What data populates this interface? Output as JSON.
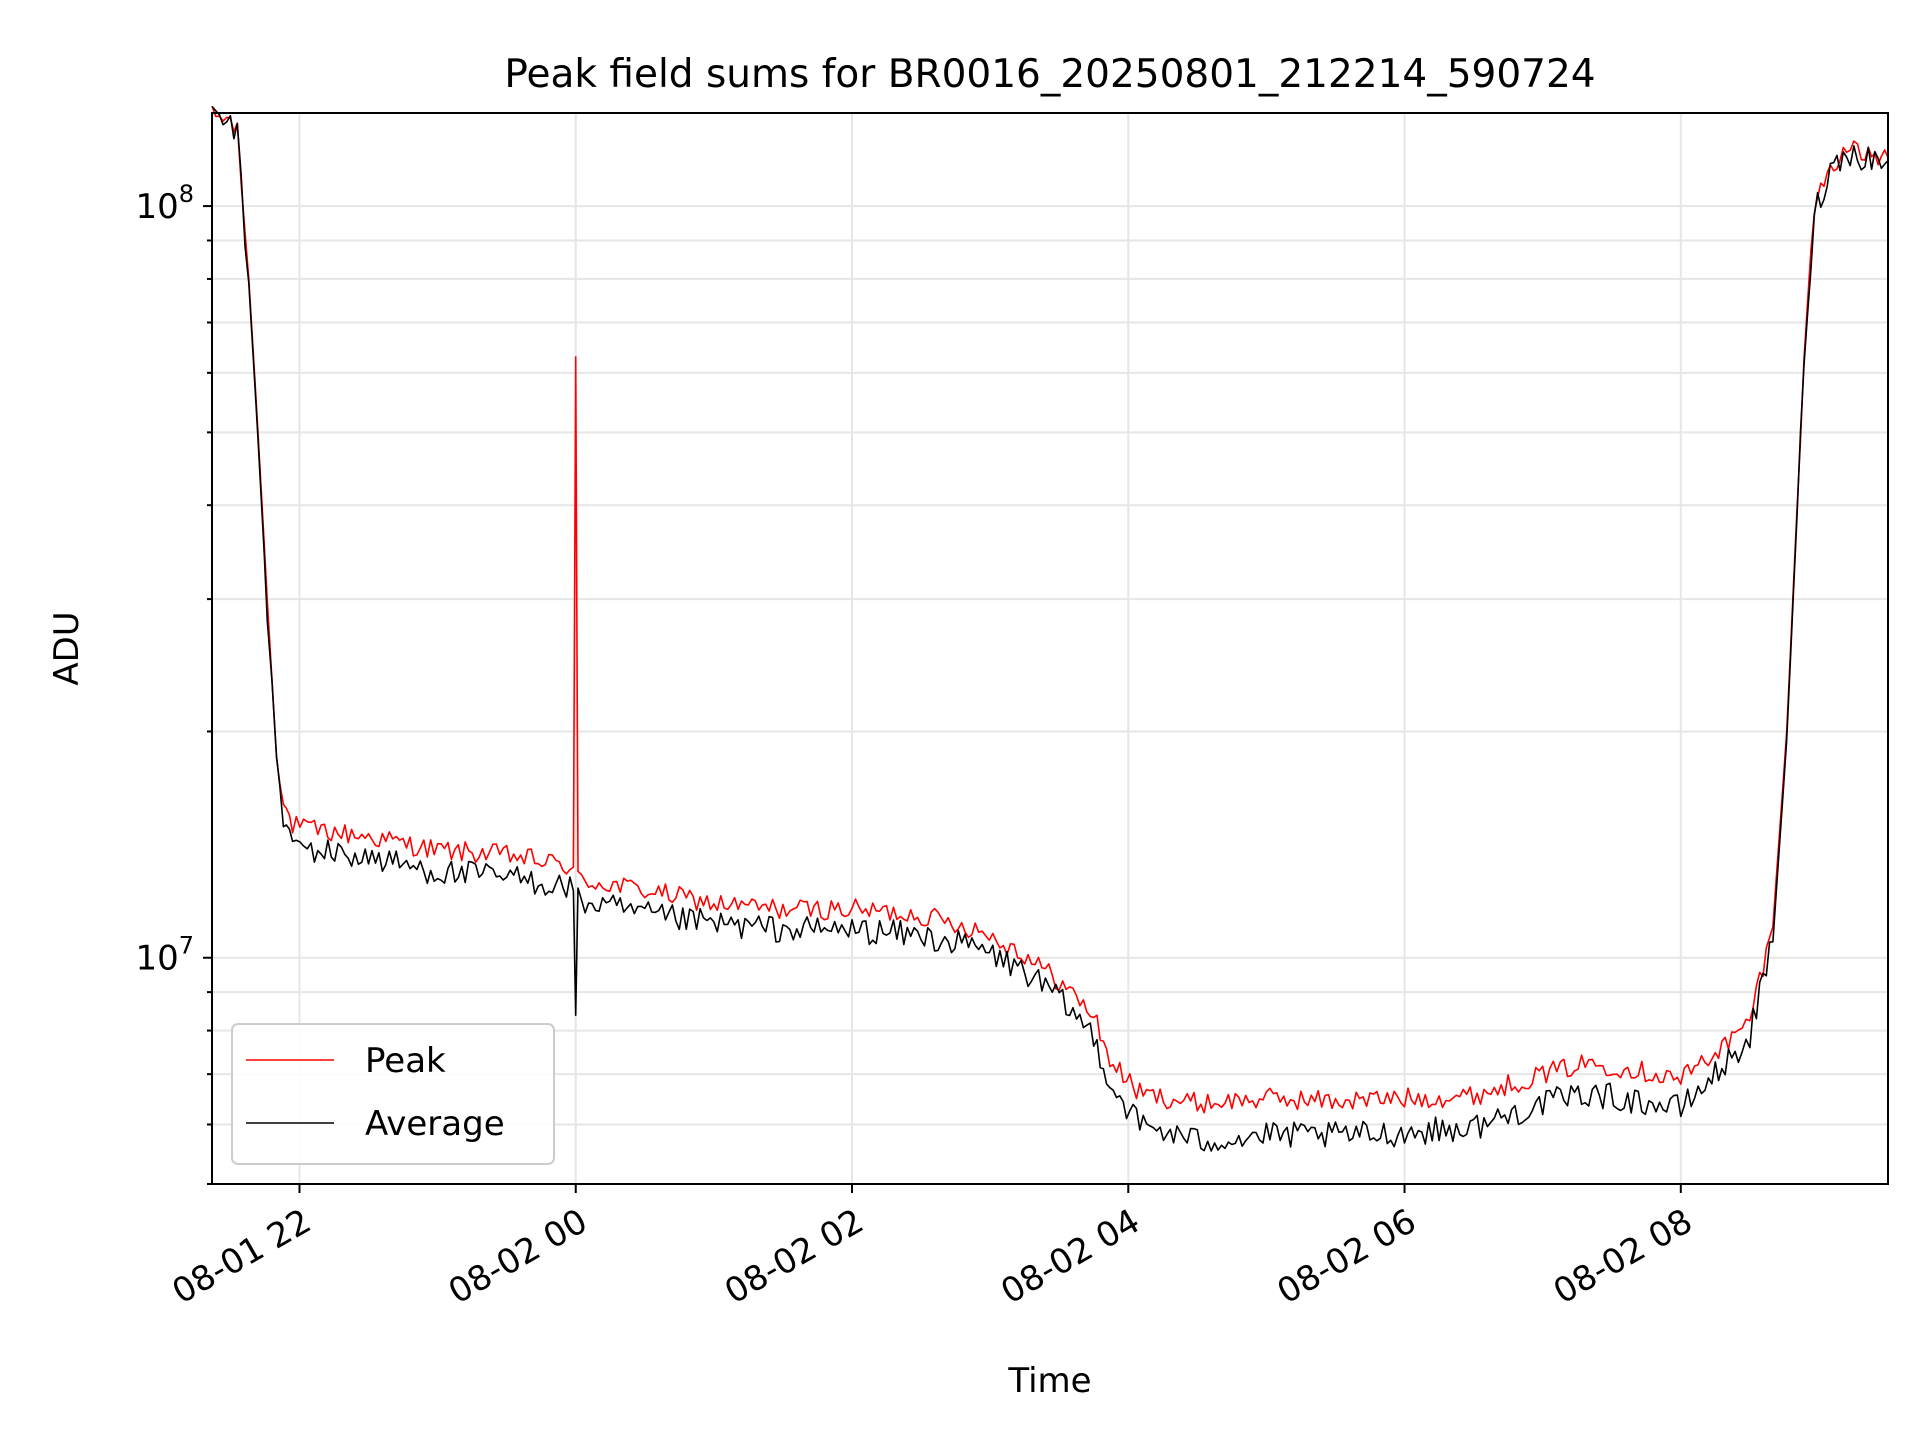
{
  "chart_data": {
    "type": "line",
    "title": "Peak field sums for BR0016_20250801_212214_590724",
    "xlabel": "Time",
    "ylabel": "ADU",
    "y_scale": "log",
    "ylim": [
      5000000,
      133000000
    ],
    "xlim": [
      "2025-08-01 21:22",
      "2025-08-02 09:30"
    ],
    "x_ticks": [
      "2025-08-01 22:00",
      "2025-08-02 00:00",
      "2025-08-02 02:00",
      "2025-08-02 04:00",
      "2025-08-02 06:00",
      "2025-08-02 08:00"
    ],
    "x_tick_labels": [
      "08-01 22",
      "08-02 00",
      "08-02 02",
      "08-02 04",
      "08-02 06",
      "08-02 08"
    ],
    "y_ticks_major": [
      10000000,
      100000000
    ],
    "y_tick_labels": [
      {
        "base": "10",
        "exp": "7"
      },
      {
        "base": "10",
        "exp": "8"
      }
    ],
    "grid": true,
    "legend_position": "lower-left",
    "colors": {
      "peak": "#ff0000",
      "average": "#000000",
      "grid": "#e6e6e6"
    },
    "series": [
      {
        "name": "Peak",
        "color": "#ff0000",
        "points": [
          [
            "2025-08-01 21:22",
            132000000
          ],
          [
            "2025-08-01 21:30",
            130000000
          ],
          [
            "2025-08-01 21:33",
            125000000
          ],
          [
            "2025-08-01 21:38",
            80000000
          ],
          [
            "2025-08-01 21:42",
            50000000
          ],
          [
            "2025-08-01 21:46",
            30000000
          ],
          [
            "2025-08-01 21:48",
            24000000
          ],
          [
            "2025-08-01 21:50",
            19000000
          ],
          [
            "2025-08-01 21:53",
            16000000
          ],
          [
            "2025-08-01 21:57",
            15000000
          ],
          [
            "2025-08-01 22:05",
            14800000
          ],
          [
            "2025-08-01 22:30",
            14500000
          ],
          [
            "2025-08-01 23:00",
            13900000
          ],
          [
            "2025-08-01 23:30",
            13700000
          ],
          [
            "2025-08-01 23:59",
            13200000
          ],
          [
            "2025-08-02 00:00",
            63000000
          ],
          [
            "2025-08-02 00:01",
            12700000
          ],
          [
            "2025-08-02 00:30",
            12300000
          ],
          [
            "2025-08-02 01:00",
            11800000
          ],
          [
            "2025-08-02 01:30",
            11600000
          ],
          [
            "2025-08-02 02:00",
            11600000
          ],
          [
            "2025-08-02 02:30",
            11400000
          ],
          [
            "2025-08-02 02:55",
            10900000
          ],
          [
            "2025-08-02 03:15",
            10100000
          ],
          [
            "2025-08-02 03:30",
            9300000
          ],
          [
            "2025-08-02 03:45",
            8400000
          ],
          [
            "2025-08-02 03:52",
            7300000
          ],
          [
            "2025-08-02 04:05",
            6600000
          ],
          [
            "2025-08-02 04:30",
            6400000
          ],
          [
            "2025-08-02 05:00",
            6500000
          ],
          [
            "2025-08-02 05:30",
            6450000
          ],
          [
            "2025-08-02 06:00",
            6500000
          ],
          [
            "2025-08-02 06:30",
            6550000
          ],
          [
            "2025-08-02 07:00",
            7000000
          ],
          [
            "2025-08-02 07:20",
            7250000
          ],
          [
            "2025-08-02 07:40",
            7100000
          ],
          [
            "2025-08-02 08:00",
            6900000
          ],
          [
            "2025-08-02 08:15",
            7500000
          ],
          [
            "2025-08-02 08:25",
            7900000
          ],
          [
            "2025-08-02 08:30",
            8300000
          ],
          [
            "2025-08-02 08:40",
            11000000
          ],
          [
            "2025-08-02 08:46",
            20000000
          ],
          [
            "2025-08-02 08:52",
            50000000
          ],
          [
            "2025-08-02 08:55",
            75000000
          ],
          [
            "2025-08-02 08:58",
            100000000
          ],
          [
            "2025-08-02 09:05",
            113000000
          ],
          [
            "2025-08-02 09:12",
            119000000
          ],
          [
            "2025-08-02 09:20",
            117000000
          ],
          [
            "2025-08-02 09:30",
            116000000
          ]
        ]
      },
      {
        "name": "Average",
        "color": "#000000",
        "points": [
          [
            "2025-08-01 21:22",
            131000000
          ],
          [
            "2025-08-01 21:30",
            129000000
          ],
          [
            "2025-08-01 21:33",
            124000000
          ],
          [
            "2025-08-01 21:38",
            79000000
          ],
          [
            "2025-08-01 21:42",
            49000000
          ],
          [
            "2025-08-01 21:46",
            29000000
          ],
          [
            "2025-08-01 21:48",
            23000000
          ],
          [
            "2025-08-01 21:50",
            18000000
          ],
          [
            "2025-08-01 21:53",
            15300000
          ],
          [
            "2025-08-01 21:57",
            14200000
          ],
          [
            "2025-08-01 22:05",
            13900000
          ],
          [
            "2025-08-01 22:30",
            13600000
          ],
          [
            "2025-08-01 23:00",
            13000000
          ],
          [
            "2025-08-01 23:30",
            12800000
          ],
          [
            "2025-08-01 23:59",
            12400000
          ],
          [
            "2025-08-02 00:00",
            8400000
          ],
          [
            "2025-08-02 00:01",
            11900000
          ],
          [
            "2025-08-02 00:30",
            11400000
          ],
          [
            "2025-08-02 01:00",
            11100000
          ],
          [
            "2025-08-02 01:30",
            10900000
          ],
          [
            "2025-08-02 02:00",
            10900000
          ],
          [
            "2025-08-02 02:30",
            10700000
          ],
          [
            "2025-08-02 02:55",
            10300000
          ],
          [
            "2025-08-02 03:15",
            9600000
          ],
          [
            "2025-08-02 03:30",
            8800000
          ],
          [
            "2025-08-02 03:45",
            7900000
          ],
          [
            "2025-08-02 03:52",
            6800000
          ],
          [
            "2025-08-02 04:05",
            6000000
          ],
          [
            "2025-08-02 04:30",
            5700000
          ],
          [
            "2025-08-02 05:00",
            5800000
          ],
          [
            "2025-08-02 05:30",
            5800000
          ],
          [
            "2025-08-02 06:00",
            5850000
          ],
          [
            "2025-08-02 06:30",
            5950000
          ],
          [
            "2025-08-02 07:00",
            6400000
          ],
          [
            "2025-08-02 07:20",
            6600000
          ],
          [
            "2025-08-02 07:40",
            6450000
          ],
          [
            "2025-08-02 08:00",
            6300000
          ],
          [
            "2025-08-02 08:15",
            7000000
          ],
          [
            "2025-08-02 08:25",
            7500000
          ],
          [
            "2025-08-02 08:30",
            7900000
          ],
          [
            "2025-08-02 08:40",
            10500000
          ],
          [
            "2025-08-02 08:46",
            19500000
          ],
          [
            "2025-08-02 08:52",
            49000000
          ],
          [
            "2025-08-02 08:55",
            73000000
          ],
          [
            "2025-08-02 08:58",
            98000000
          ],
          [
            "2025-08-02 09:05",
            112000000
          ],
          [
            "2025-08-02 09:12",
            118000000
          ],
          [
            "2025-08-02 09:20",
            116000000
          ],
          [
            "2025-08-02 09:30",
            115000000
          ]
        ]
      }
    ]
  }
}
